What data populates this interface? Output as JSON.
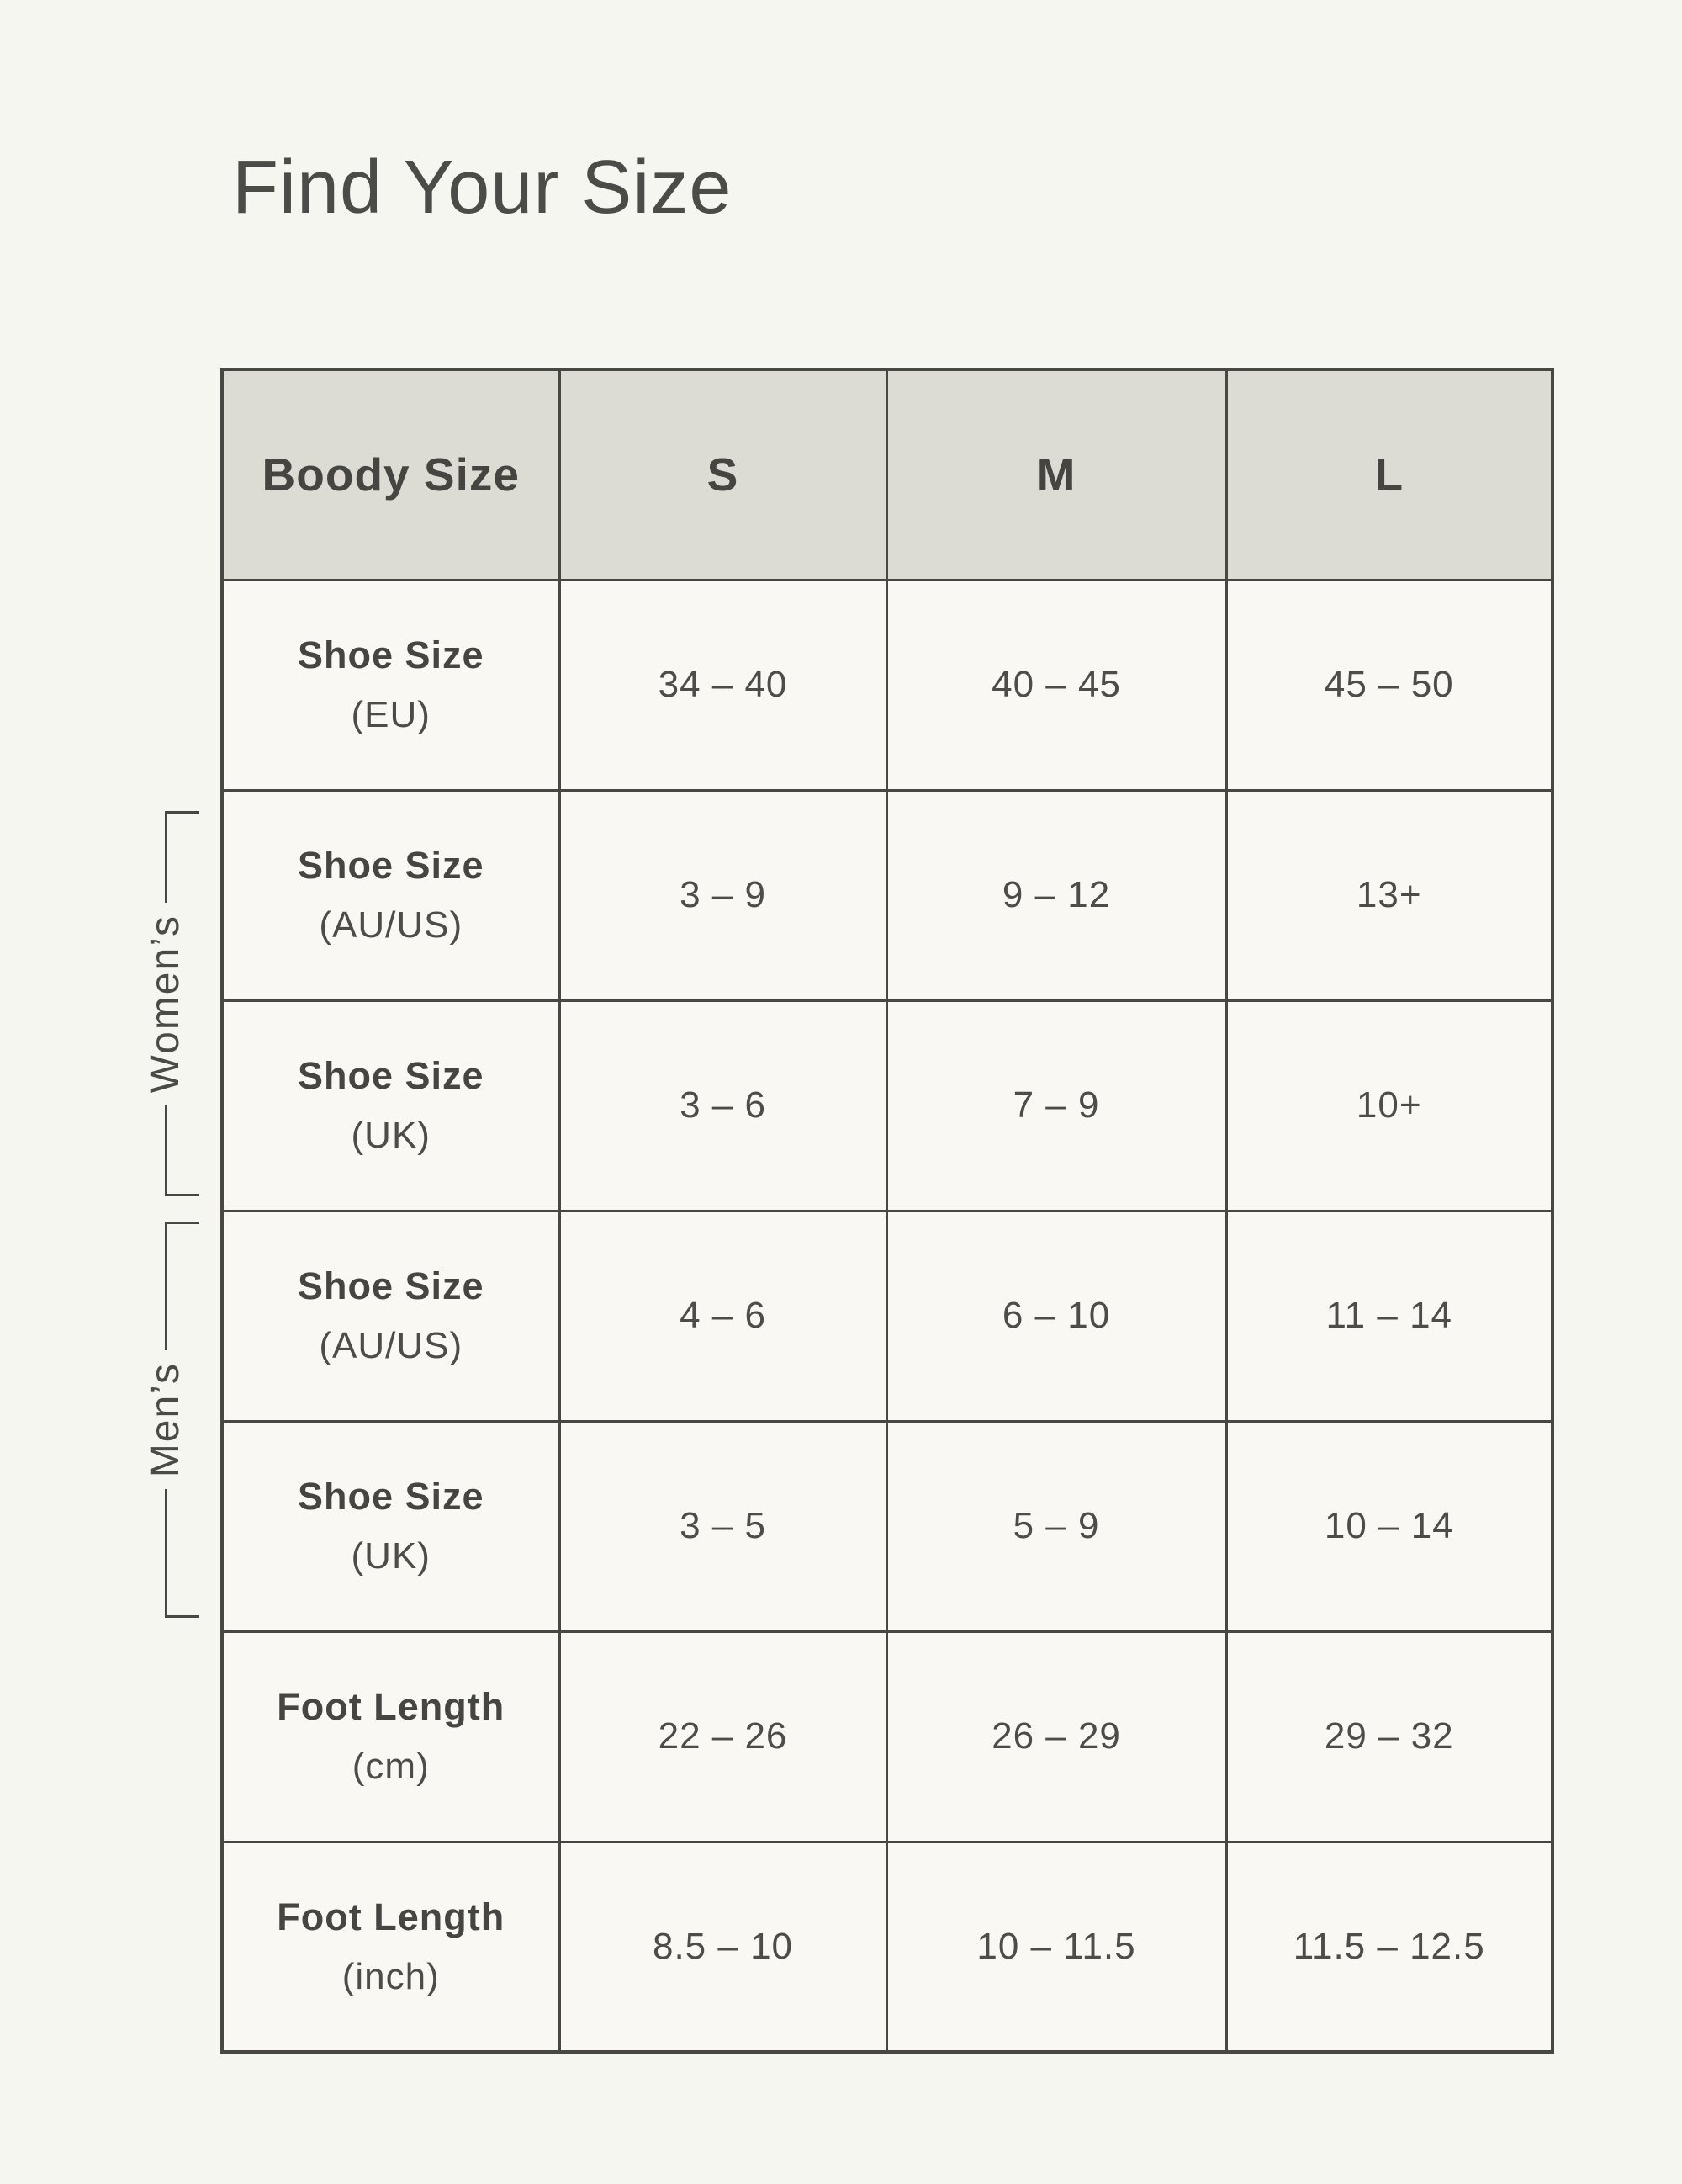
{
  "page": {
    "title": "Find Your Size"
  },
  "groups": {
    "womens": {
      "label": "Women’s"
    },
    "mens": {
      "label": "Men’s"
    }
  },
  "table": {
    "header": {
      "corner": "Boody Size",
      "sizes": [
        "S",
        "M",
        "L"
      ]
    },
    "rows": [
      {
        "label": "Shoe Size",
        "unit": "(EU)",
        "values": [
          "34 – 40",
          "40 – 45",
          "45 – 50"
        ]
      },
      {
        "label": "Shoe Size",
        "unit": "(AU/US)",
        "values": [
          "3 – 9",
          "9 – 12",
          "13+"
        ]
      },
      {
        "label": "Shoe Size",
        "unit": "(UK)",
        "values": [
          "3 – 6",
          "7 – 9",
          "10+"
        ]
      },
      {
        "label": "Shoe Size",
        "unit": "(AU/US)",
        "values": [
          "4 – 6",
          "6 – 10",
          "11 – 14"
        ]
      },
      {
        "label": "Shoe Size",
        "unit": "(UK)",
        "values": [
          "3 – 5",
          "5 – 9",
          "10 – 14"
        ]
      },
      {
        "label": "Foot Length",
        "unit": "(cm)",
        "values": [
          "22 – 26",
          "26 – 29",
          "29 – 32"
        ]
      },
      {
        "label": "Foot Length",
        "unit": "(inch)",
        "values": [
          "8.5 – 10",
          "10 – 11.5",
          "11.5 – 12.5"
        ]
      }
    ]
  },
  "colors": {
    "page_bg": "#f6f6f0",
    "cell_bg": "#f9f8f3",
    "header_bg": "#dcdcd4",
    "line": "#474744",
    "text": "#4a4a47"
  },
  "chart_data": {
    "type": "table",
    "title": "Find Your Size",
    "columns": [
      "Boody Size",
      "S",
      "M",
      "L"
    ],
    "rows": [
      [
        "Shoe Size (EU)",
        "34 – 40",
        "40 – 45",
        "45 – 50"
      ],
      [
        "Shoe Size (AU/US)",
        "3 – 9",
        "9 – 12",
        "13+"
      ],
      [
        "Shoe Size (UK)",
        "3 – 6",
        "7 – 9",
        "10+"
      ],
      [
        "Shoe Size (AU/US)",
        "4 – 6",
        "6 – 10",
        "11 – 14"
      ],
      [
        "Shoe Size (UK)",
        "3 – 5",
        "5 – 9",
        "10 – 14"
      ],
      [
        "Foot Length (cm)",
        "22 – 26",
        "26 – 29",
        "29 – 32"
      ],
      [
        "Foot Length (inch)",
        "8.5 – 10",
        "10 – 11.5",
        "11.5 – 12.5"
      ]
    ],
    "row_groups": [
      {
        "label": "Women’s",
        "row_indices": [
          1,
          2
        ]
      },
      {
        "label": "Men’s",
        "row_indices": [
          3,
          4
        ]
      }
    ]
  }
}
